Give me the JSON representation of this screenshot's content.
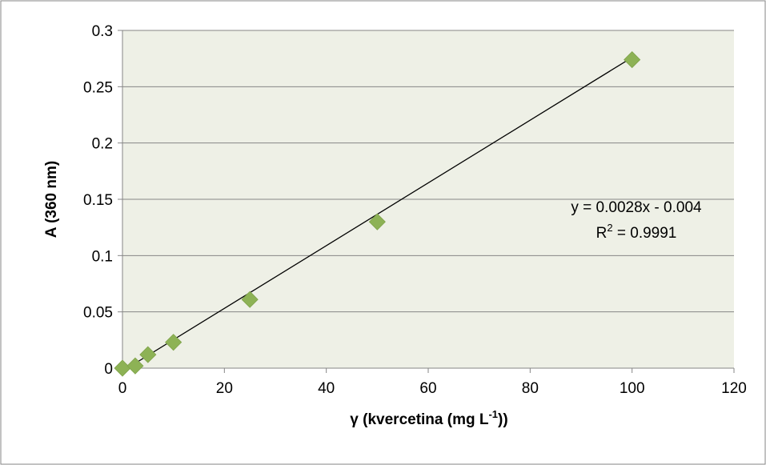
{
  "chart_data": {
    "type": "scatter",
    "title": "",
    "xlabel_main": "γ (kvercetina (mg L",
    "xlabel_sup": "-1",
    "xlabel_end": "))",
    "ylabel": "A (360 nm)",
    "xlim": [
      0,
      120
    ],
    "ylim": [
      0,
      0.3
    ],
    "xticks": [
      0,
      20,
      40,
      60,
      80,
      100,
      120
    ],
    "xtick_labels": [
      "0",
      "20",
      "40",
      "60",
      "80",
      "100",
      "120"
    ],
    "yticks": [
      0,
      0.05,
      0.1,
      0.15,
      0.2,
      0.25,
      0.3
    ],
    "ytick_labels": [
      "0",
      "0.05",
      "0.1",
      "0.15",
      "0.2",
      "0.25",
      "0.3"
    ],
    "grid": "horizontal",
    "legend": "none",
    "series": [
      {
        "marker": "diamond",
        "color": "#8db255",
        "points": [
          {
            "x": 0,
            "y": 0.0
          },
          {
            "x": 2.5,
            "y": 0.002
          },
          {
            "x": 5,
            "y": 0.012
          },
          {
            "x": 10,
            "y": 0.023
          },
          {
            "x": 25,
            "y": 0.061
          },
          {
            "x": 50,
            "y": 0.13
          },
          {
            "x": 100,
            "y": 0.274
          }
        ]
      }
    ],
    "trendline": {
      "type": "linear",
      "slope": 0.0028,
      "intercept": -0.004,
      "x_range": [
        0,
        100
      ],
      "color": "#000000",
      "equation": "y = 0.0028x - 0.004",
      "r2_prefix": "R",
      "r2_sup": "2",
      "r2_suffix": " = 0.9991"
    },
    "colors": {
      "plot_background": "#eef0e6",
      "gridline": "#868686",
      "border": "#868686"
    }
  }
}
